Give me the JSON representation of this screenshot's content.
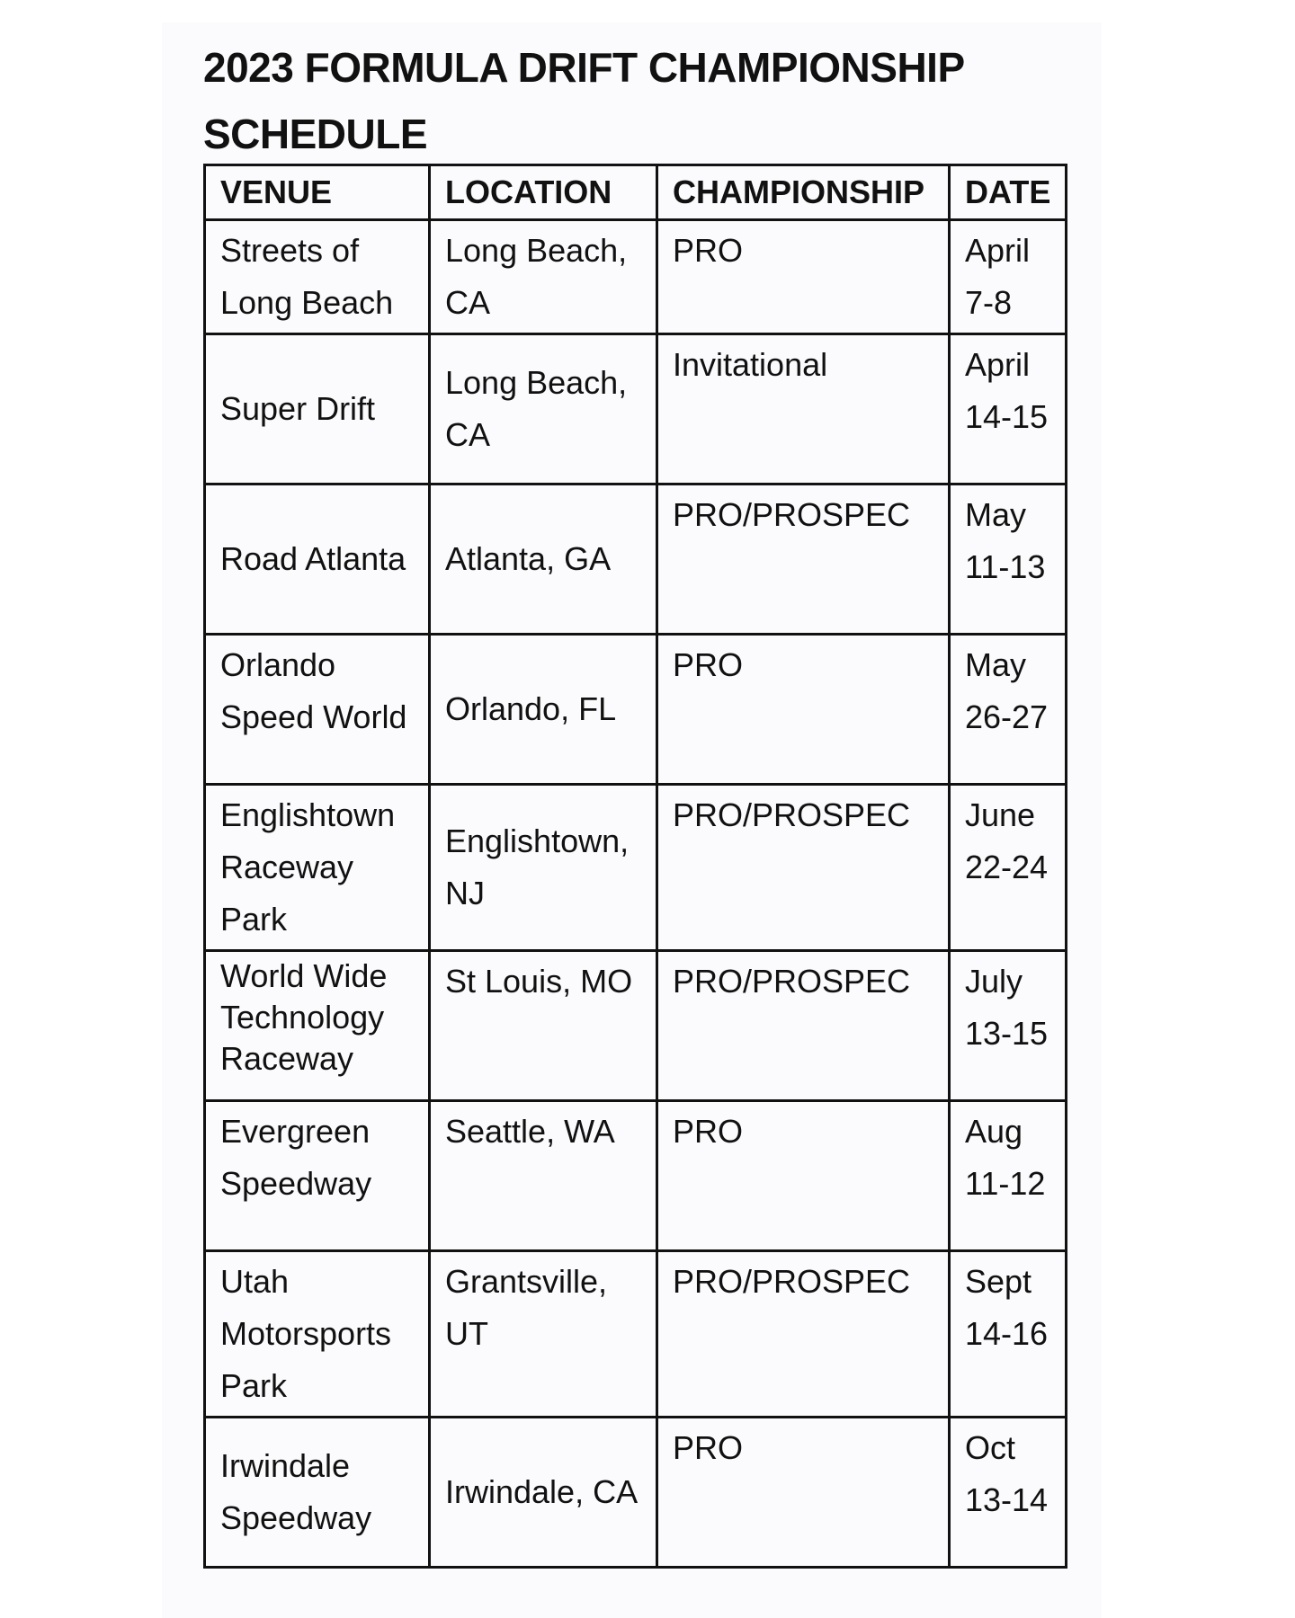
{
  "title": "2023 FORMULA DRIFT CHAMPIONSHIP SCHEDULE",
  "table": {
    "headers": [
      "VENUE",
      "LOCATION",
      "CHAMPIONSHIP",
      "DATE"
    ],
    "rows": [
      [
        "Streets of Long Beach",
        "Long Beach, CA",
        "PRO",
        "April 7-8"
      ],
      [
        "Super Drift",
        "Long Beach, CA",
        "Invitational",
        "April 14-15"
      ],
      [
        "Road Atlanta",
        "Atlanta, GA",
        "PRO/PROSPEC",
        "May 11-13"
      ],
      [
        "Orlando Speed World",
        "Orlando, FL",
        "PRO",
        "May 26-27"
      ],
      [
        "Englishtown Raceway Park",
        "Englishtown, NJ",
        "PRO/PROSPEC",
        "June 22-24"
      ],
      [
        "World Wide Technology Raceway",
        "St Louis, MO",
        "PRO/PROSPEC",
        "July 13-15"
      ],
      [
        "Evergreen Speedway",
        "Seattle, WA",
        "PRO",
        "Aug 11-12"
      ],
      [
        "Utah Motorsports Park",
        "Grantsville, UT",
        "PRO/PROSPEC",
        "Sept 14-16"
      ],
      [
        "Irwindale Speedway",
        "Irwindale, CA",
        "PRO",
        "Oct 13-14"
      ]
    ]
  }
}
